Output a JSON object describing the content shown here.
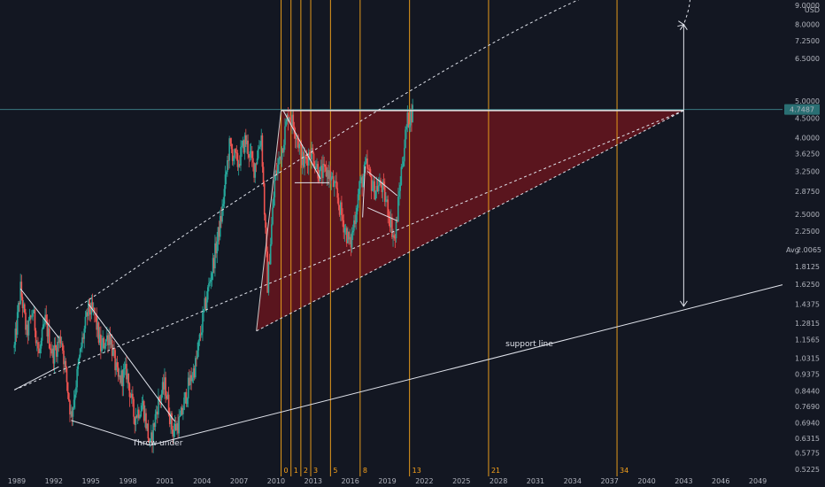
{
  "chart_data": {
    "type": "candlestick",
    "title": "",
    "xlabel": "",
    "ylabel": "",
    "unit": "USD",
    "log_scale": true,
    "xlim": [
      1988.5,
      2051.0
    ],
    "ylim": [
      0.5,
      9.0
    ],
    "x_ticks": [
      "1989",
      "1992",
      "1995",
      "1998",
      "2001",
      "2004",
      "2007",
      "2010",
      "2013",
      "2016",
      "2019",
      "2022",
      "2025",
      "2028",
      "2031",
      "2034",
      "2037",
      "2040",
      "2043",
      "2046",
      "2049"
    ],
    "y_ticks": [
      9.0,
      8.0,
      7.25,
      6.5,
      5.0,
      4.5,
      4.0,
      3.625,
      3.25,
      2.875,
      2.5,
      2.25,
      2.0065,
      1.8125,
      1.625,
      1.4375,
      1.2815,
      1.1565,
      1.0315,
      0.9375,
      0.844,
      0.769,
      0.694,
      0.6315,
      0.5775,
      0.5225
    ],
    "y_tick_labels": [
      "9.0000",
      "8.0000",
      "7.2500",
      "6.5000",
      "5.0000",
      "4.5000",
      "4.0000",
      "3.6250",
      "3.2500",
      "2.8750",
      "2.5000",
      "2.2500",
      "2.0065",
      "1.8125",
      "1.6250",
      "1.4375",
      "1.2815",
      "1.1565",
      "1.0315",
      "0.9375",
      "0.8440",
      "0.7690",
      "0.6940",
      "0.6315",
      "0.5775",
      "0.5225"
    ],
    "last_price": 4.7487,
    "last_price_label": "4.7487",
    "avg_value": 2.0065,
    "avg_label": "Avg",
    "fib_time_zones": [
      {
        "label": "0",
        "year": 2010.4
      },
      {
        "label": "1",
        "year": 2011.2
      },
      {
        "label": "2",
        "year": 2012.0
      },
      {
        "label": "3",
        "year": 2012.8
      },
      {
        "label": "5",
        "year": 2014.4
      },
      {
        "label": "8",
        "year": 2016.8
      },
      {
        "label": "13",
        "year": 2020.8
      },
      {
        "label": "21",
        "year": 2027.2
      },
      {
        "label": "34",
        "year": 2037.6
      }
    ],
    "annotations": [
      {
        "text": "Throw under",
        "x": 2000.4,
        "y": 0.605
      },
      {
        "text": "support line",
        "x": 2030.5,
        "y": 1.11
      }
    ],
    "price_path": [
      [
        1988.8,
        1.1
      ],
      [
        1989.3,
        1.58
      ],
      [
        1989.8,
        1.2
      ],
      [
        1990.3,
        1.38
      ],
      [
        1990.8,
        1.05
      ],
      [
        1991.3,
        1.3
      ],
      [
        1991.9,
        1.05
      ],
      [
        1992.6,
        1.18
      ],
      [
        1993.4,
        0.72
      ],
      [
        1994.2,
        1.1
      ],
      [
        1994.8,
        1.4
      ],
      [
        1995.3,
        1.35
      ],
      [
        1995.8,
        1.1
      ],
      [
        1996.5,
        1.2
      ],
      [
        1997.2,
        0.9
      ],
      [
        1997.9,
        0.95
      ],
      [
        1998.5,
        0.72
      ],
      [
        1999.2,
        0.78
      ],
      [
        1999.8,
        0.6
      ],
      [
        2000.4,
        0.78
      ],
      [
        2001.0,
        0.88
      ],
      [
        2001.6,
        0.66
      ],
      [
        2002.2,
        0.7
      ],
      [
        2002.8,
        0.85
      ],
      [
        2003.5,
        1.0
      ],
      [
        2004.2,
        1.4
      ],
      [
        2004.9,
        1.85
      ],
      [
        2005.6,
        2.5
      ],
      [
        2006.2,
        3.8
      ],
      [
        2006.9,
        3.4
      ],
      [
        2007.5,
        3.95
      ],
      [
        2008.2,
        3.3
      ],
      [
        2008.8,
        4.05
      ],
      [
        2009.3,
        1.62
      ],
      [
        2009.9,
        3.1
      ],
      [
        2010.5,
        3.8
      ],
      [
        2011.0,
        4.7
      ],
      [
        2011.6,
        4.15
      ],
      [
        2012.2,
        3.4
      ],
      [
        2012.8,
        3.7
      ],
      [
        2013.5,
        3.2
      ],
      [
        2014.2,
        3.25
      ],
      [
        2014.8,
        2.9
      ],
      [
        2015.4,
        2.4
      ],
      [
        2016.0,
        2.05
      ],
      [
        2016.7,
        2.9
      ],
      [
        2017.3,
        3.35
      ],
      [
        2017.9,
        2.9
      ],
      [
        2018.5,
        3.0
      ],
      [
        2019.1,
        2.55
      ],
      [
        2019.6,
        2.1
      ],
      [
        2020.1,
        3.2
      ],
      [
        2020.6,
        4.4
      ],
      [
        2021.1,
        4.75
      ]
    ],
    "lines": [
      {
        "name": "top-line",
        "points": [
          [
            2010.4,
            4.72
          ],
          [
            2043.0,
            4.72
          ]
        ]
      },
      {
        "name": "triangle-lower-edge",
        "points": [
          [
            2008.4,
            1.22
          ],
          [
            2043.0,
            4.72
          ]
        ]
      },
      {
        "name": "triangle-left-edge",
        "points": [
          [
            2008.4,
            1.22
          ],
          [
            2010.4,
            4.72
          ]
        ]
      },
      {
        "name": "support-line",
        "points": [
          [
            1999.8,
            0.605
          ],
          [
            2051.0,
            1.62
          ]
        ]
      },
      {
        "name": "lower-trendline-1",
        "points": [
          [
            1988.8,
            0.85
          ],
          [
            1992.4,
            0.98
          ]
        ]
      },
      {
        "name": "lower-trendline-2",
        "points": [
          [
            1993.4,
            0.705
          ],
          [
            1999.8,
            0.605
          ]
        ]
      },
      {
        "name": "mid-channel-line",
        "points": [
          [
            1988.8,
            0.85
          ],
          [
            2043.0,
            4.72
          ]
        ]
      },
      {
        "name": "descending-line-1",
        "points": [
          [
            1989.3,
            1.58
          ],
          [
            1992.4,
            1.17
          ]
        ]
      },
      {
        "name": "descending-line-2",
        "points": [
          [
            1994.8,
            1.44
          ],
          [
            2001.8,
            0.7
          ]
        ]
      },
      {
        "name": "descending-line-3",
        "points": [
          [
            2010.6,
            4.7
          ],
          [
            2013.6,
            3.1
          ]
        ]
      },
      {
        "name": "consolidation-line",
        "points": [
          [
            2011.5,
            3.03
          ],
          [
            2014.3,
            3.03
          ]
        ]
      },
      {
        "name": "flag-upper-line",
        "points": [
          [
            2017.4,
            3.25
          ],
          [
            2019.8,
            2.8
          ]
        ]
      },
      {
        "name": "flag-lower-line",
        "points": [
          [
            2017.4,
            2.6
          ],
          [
            2019.8,
            2.4
          ]
        ]
      },
      {
        "name": "flag-left-line",
        "points": [
          [
            2017.2,
            3.35
          ],
          [
            2017.0,
            2.45
          ]
        ]
      }
    ],
    "arc": {
      "start": [
        1993.8,
        1.4
      ],
      "peak_x": 2033.5,
      "peak_y": 9.0,
      "end": [
        2043.0,
        8.0
      ]
    },
    "range_arrow": {
      "x": 2043.0,
      "y_top": 8.0,
      "y_bottom": 1.42
    },
    "grid": false,
    "legend": "none"
  }
}
